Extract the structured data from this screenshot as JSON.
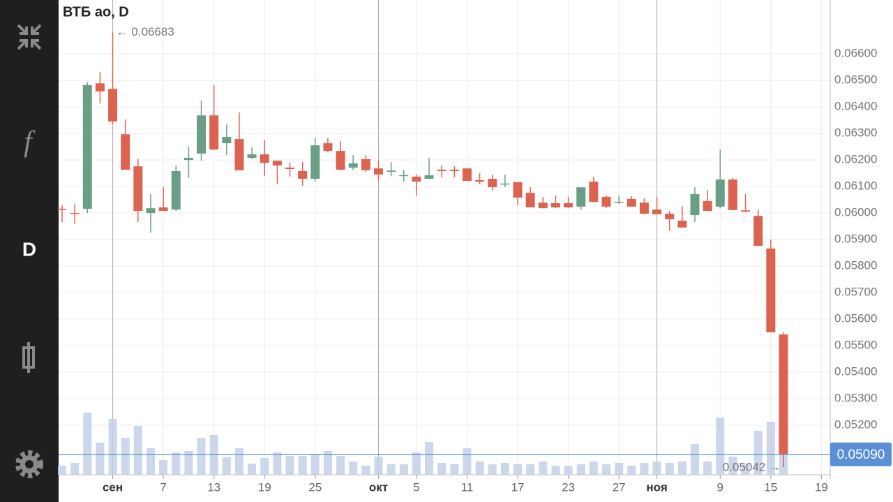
{
  "sidebar": {
    "items": [
      "f",
      "D"
    ]
  },
  "chart_data": {
    "type": "candlestick",
    "title": "ВТБ ао, D",
    "categories": [
      null,
      null,
      null,
      null,
      "сен",
      null,
      null,
      null,
      "7",
      null,
      null,
      null,
      "13",
      null,
      null,
      null,
      "19",
      null,
      null,
      null,
      "25",
      null,
      null,
      null,
      null,
      "окт",
      null,
      null,
      "5",
      null,
      null,
      null,
      "11",
      null,
      null,
      null,
      "17",
      null,
      null,
      null,
      "23",
      null,
      null,
      null,
      "27",
      null,
      null,
      "ноя",
      null,
      null,
      null,
      null,
      "9",
      null,
      null,
      null,
      "15",
      null,
      null,
      null,
      "19"
    ],
    "open": [
      0.06016,
      0.06,
      0.06016,
      0.06489,
      0.06468,
      0.06297,
      0.06176,
      0.06,
      0.06021,
      0.06013,
      0.062,
      0.06224,
      0.06368,
      0.06263,
      0.06279,
      0.06208,
      0.06221,
      0.06197,
      0.06171,
      0.06158,
      0.06129,
      0.06263,
      0.06234,
      0.06171,
      0.06203,
      0.06168,
      0.06155,
      0.0614,
      0.06137,
      0.06129,
      0.06163,
      0.06163,
      0.06168,
      0.06124,
      0.06129,
      0.06108,
      0.06116,
      0.06076,
      0.06039,
      0.06037,
      0.06037,
      0.06024,
      0.06118,
      0.06061,
      0.0604,
      0.06053,
      0.06039,
      0.06013,
      0.05997,
      0.05971,
      0.05992,
      0.06045,
      0.06024,
      0.06126,
      0.0601,
      0.05989,
      0.05866,
      0.05542,
      null,
      null,
      null
    ],
    "high": [
      0.0603,
      0.06035,
      0.06492,
      0.06532,
      0.06683,
      0.06353,
      0.06203,
      0.06071,
      0.06097,
      0.06179,
      0.0625,
      0.06424,
      0.06482,
      0.06334,
      0.06379,
      0.06247,
      0.06274,
      0.06197,
      0.06189,
      0.06192,
      0.06282,
      0.06282,
      0.06271,
      0.06218,
      0.06218,
      0.06197,
      0.06192,
      0.06161,
      0.06145,
      0.06208,
      0.06182,
      0.06176,
      0.06168,
      0.0615,
      0.06145,
      0.06145,
      0.06116,
      0.06097,
      0.06061,
      0.06066,
      0.06061,
      0.06097,
      0.06137,
      0.06066,
      0.06066,
      0.06063,
      0.06055,
      0.06061,
      0.06008,
      0.06026,
      0.06097,
      0.06087,
      0.06239,
      0.06132,
      0.06071,
      0.06013,
      0.059,
      0.0555,
      null,
      null,
      null
    ],
    "low": [
      0.05965,
      0.0596,
      0.06,
      0.06413,
      0.06334,
      0.06163,
      0.05966,
      0.05926,
      0.06008,
      0.06008,
      0.06132,
      0.06197,
      0.06239,
      0.06218,
      0.06161,
      0.06203,
      0.06139,
      0.06108,
      0.06137,
      0.06103,
      0.06118,
      0.06229,
      0.06161,
      0.06161,
      0.06155,
      0.06124,
      0.06139,
      0.06118,
      0.06066,
      0.06129,
      0.06134,
      0.06134,
      0.06121,
      0.06108,
      0.06084,
      0.06097,
      0.06029,
      0.06021,
      0.06018,
      0.06018,
      0.06018,
      0.06013,
      0.06039,
      0.06018,
      0.06034,
      0.06024,
      0.05997,
      0.05995,
      0.05932,
      0.05945,
      0.05966,
      0.06008,
      0.06018,
      0.06011,
      0.06003,
      0.05876,
      0.0555,
      0.05042,
      null,
      null,
      null
    ],
    "close": [
      0.06013,
      0.05997,
      0.06482,
      0.06458,
      0.06345,
      0.06163,
      0.06008,
      0.06018,
      0.06008,
      0.06158,
      0.06208,
      0.06368,
      0.06239,
      0.06287,
      0.06161,
      0.06221,
      0.06189,
      0.06179,
      0.06166,
      0.06129,
      0.06255,
      0.06234,
      0.06163,
      0.06187,
      0.06161,
      0.06145,
      0.0616,
      0.06143,
      0.06118,
      0.06142,
      0.06158,
      0.06158,
      0.06121,
      0.06118,
      0.06097,
      0.06111,
      0.06058,
      0.06021,
      0.06018,
      0.06021,
      0.06021,
      0.06097,
      0.06042,
      0.06024,
      0.06042,
      0.06024,
      0.05997,
      0.05995,
      0.05976,
      0.05945,
      0.06071,
      0.06008,
      0.06126,
      0.06011,
      0.06005,
      0.05876,
      0.0555,
      0.0509,
      null,
      null,
      null
    ],
    "volume": [
      13,
      17,
      89,
      46,
      80,
      53,
      70,
      38,
      21,
      32,
      34,
      53,
      57,
      25,
      38,
      16,
      24,
      32,
      27,
      27,
      30,
      34,
      27,
      19,
      13,
      26,
      15,
      15,
      32,
      47,
      17,
      15,
      38,
      19,
      15,
      17,
      15,
      15,
      19,
      13,
      13,
      15,
      19,
      15,
      17,
      13,
      17,
      19,
      17,
      19,
      44,
      19,
      82,
      26,
      15,
      63,
      76,
      135,
      null,
      null,
      null
    ],
    "up_color": "#6a9e85",
    "down_color": "#dd6351",
    "volume_color": "#c3d0e8",
    "ylim": [
      0.05013,
      0.06803
    ],
    "yticks": [
      {
        "value": 0.052,
        "label": "0.05200"
      },
      {
        "value": 0.053,
        "label": "0.05300"
      },
      {
        "value": 0.054,
        "label": "0.05400"
      },
      {
        "value": 0.055,
        "label": "0.05500"
      },
      {
        "value": 0.056,
        "label": "0.05600"
      },
      {
        "value": 0.057,
        "label": "0.05700"
      },
      {
        "value": 0.058,
        "label": "0.05800"
      },
      {
        "value": 0.059,
        "label": "0.05900"
      },
      {
        "value": 0.06,
        "label": "0.06000"
      },
      {
        "value": 0.061,
        "label": "0.06100"
      },
      {
        "value": 0.062,
        "label": "0.06200"
      },
      {
        "value": 0.063,
        "label": "0.06300"
      },
      {
        "value": 0.064,
        "label": "0.06400"
      },
      {
        "value": 0.065,
        "label": "0.06500"
      },
      {
        "value": 0.066,
        "label": "0.06600"
      }
    ],
    "grid": true,
    "annotations": [
      {
        "value": 0.06683,
        "label": "← 0.06683"
      },
      {
        "value": 0.05042,
        "label": "0.05042 →"
      }
    ],
    "last_price": {
      "value": 0.0509,
      "label": "0.05090",
      "color": "#5b8fd6"
    }
  }
}
